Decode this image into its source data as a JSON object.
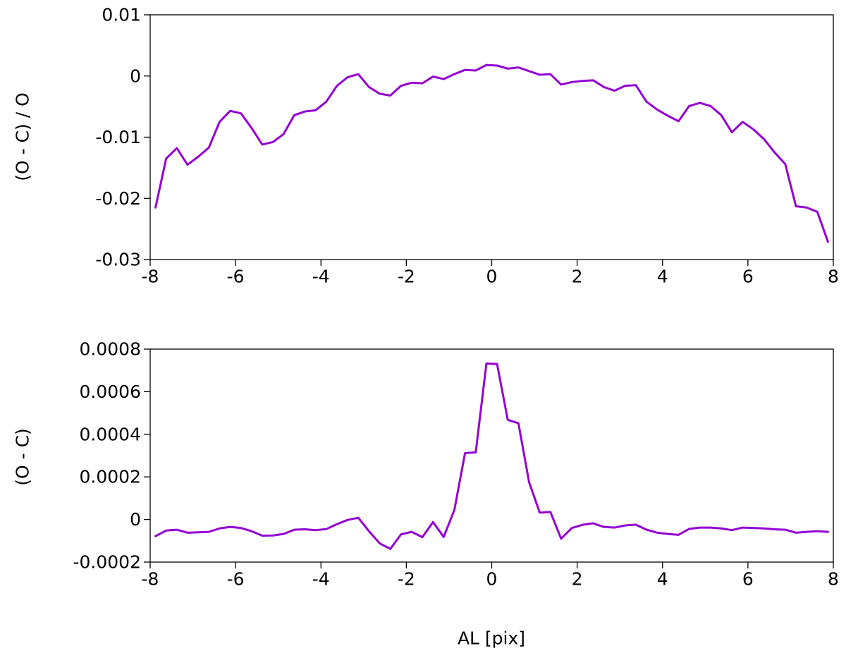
{
  "chart_data": [
    {
      "type": "line",
      "title": "",
      "xlabel": "",
      "ylabel": "(O - C) / O",
      "xlim": [
        -8,
        8
      ],
      "ylim": [
        -0.03,
        0.01
      ],
      "xticks": [
        "-8",
        "-6",
        "-4",
        "-2",
        "0",
        "2",
        "4",
        "6",
        "8"
      ],
      "yticks": [
        "0.01",
        "0",
        "-0.01",
        "-0.02",
        "-0.03"
      ],
      "color": "#9400d3",
      "grid": false,
      "legend": "none",
      "x": [
        -7.875,
        -7.625,
        -7.375,
        -7.125,
        -6.875,
        -6.625,
        -6.375,
        -6.125,
        -5.875,
        -5.625,
        -5.375,
        -5.125,
        -4.875,
        -4.625,
        -4.375,
        -4.125,
        -3.875,
        -3.625,
        -3.375,
        -3.125,
        -2.875,
        -2.625,
        -2.375,
        -2.125,
        -1.875,
        -1.625,
        -1.375,
        -1.125,
        -0.875,
        -0.625,
        -0.375,
        -0.125,
        0.125,
        0.375,
        0.625,
        0.875,
        1.125,
        1.375,
        1.625,
        1.875,
        2.125,
        2.375,
        2.625,
        2.875,
        3.125,
        3.375,
        3.625,
        3.875,
        4.125,
        4.375,
        4.625,
        4.875,
        5.125,
        5.375,
        5.625,
        5.875,
        6.125,
        6.375,
        6.625,
        6.875,
        7.125,
        7.375,
        7.625,
        7.875
      ],
      "y": [
        -0.0215,
        -0.0135,
        -0.0118,
        -0.0145,
        -0.0132,
        -0.0117,
        -0.0075,
        -0.0057,
        -0.0061,
        -0.0085,
        -0.0112,
        -0.0108,
        -0.0095,
        -0.0064,
        -0.0058,
        -0.0056,
        -0.0042,
        -0.0016,
        -0.0002,
        0.0003,
        -0.0018,
        -0.0029,
        -0.0032,
        -0.0016,
        -0.0011,
        -0.0012,
        -0.0001,
        -0.0005,
        0.0003,
        0.001,
        0.0009,
        0.0018,
        0.0017,
        0.0012,
        0.0014,
        0.0008,
        0.0002,
        0.0003,
        -0.0014,
        -0.001,
        -0.0008,
        -0.0007,
        -0.0018,
        -0.0024,
        -0.0016,
        -0.0015,
        -0.0042,
        -0.0055,
        -0.0065,
        -0.0074,
        -0.0049,
        -0.0044,
        -0.0049,
        -0.0064,
        -0.0092,
        -0.0075,
        -0.0087,
        -0.0103,
        -0.0125,
        -0.0144,
        -0.0213,
        -0.0215,
        -0.0222,
        -0.0271
      ]
    },
    {
      "type": "line",
      "title": "",
      "xlabel": "AL [pix]",
      "ylabel": "(O - C)",
      "xlim": [
        -8,
        8
      ],
      "ylim": [
        -0.0002,
        0.0008
      ],
      "xticks": [
        "-8",
        "-6",
        "-4",
        "-2",
        "0",
        "2",
        "4",
        "6",
        "8"
      ],
      "yticks": [
        "0.0008",
        "0.0006",
        "0.0004",
        "0.0002",
        "0",
        "-0.0002"
      ],
      "color": "#9400d3",
      "grid": false,
      "legend": "none",
      "x": [
        -7.875,
        -7.625,
        -7.375,
        -7.125,
        -6.875,
        -6.625,
        -6.375,
        -6.125,
        -5.875,
        -5.625,
        -5.375,
        -5.125,
        -4.875,
        -4.625,
        -4.375,
        -4.125,
        -3.875,
        -3.625,
        -3.375,
        -3.125,
        -2.875,
        -2.625,
        -2.375,
        -2.125,
        -1.875,
        -1.625,
        -1.375,
        -1.125,
        -0.875,
        -0.625,
        -0.375,
        -0.125,
        0.125,
        0.375,
        0.625,
        0.875,
        1.125,
        1.375,
        1.625,
        1.875,
        2.125,
        2.375,
        2.625,
        2.875,
        3.125,
        3.375,
        3.625,
        3.875,
        4.125,
        4.375,
        4.625,
        4.875,
        5.125,
        5.375,
        5.625,
        5.875,
        6.125,
        6.375,
        6.625,
        6.875,
        7.125,
        7.375,
        7.625,
        7.875
      ],
      "y": [
        -7.8e-05,
        -5.2e-05,
        -4.8e-05,
        -6.2e-05,
        -6e-05,
        -5.8e-05,
        -4.2e-05,
        -3.5e-05,
        -4e-05,
        -5.5e-05,
        -7.6e-05,
        -7.5e-05,
        -6.8e-05,
        -4.8e-05,
        -4.6e-05,
        -5e-05,
        -4.5e-05,
        -2.2e-05,
        -2e-06,
        8e-06,
        -5.5e-05,
        -0.000112,
        -0.000138,
        -7e-05,
        -5.8e-05,
        -8.3e-05,
        -1.2e-05,
        -8.2e-05,
        4.5e-05,
        0.000312,
        0.000315,
        0.000732,
        0.00073,
        0.000468,
        0.000452,
        0.000175,
        3.2e-05,
        3.5e-05,
        -9e-05,
        -4e-05,
        -2.5e-05,
        -1.8e-05,
        -3.5e-05,
        -3.8e-05,
        -2.8e-05,
        -2.4e-05,
        -4.8e-05,
        -6.2e-05,
        -6.8e-05,
        -7.2e-05,
        -4.4e-05,
        -3.8e-05,
        -3.8e-05,
        -4.2e-05,
        -5e-05,
        -3.8e-05,
        -4e-05,
        -4.2e-05,
        -4.6e-05,
        -4.8e-05,
        -6.2e-05,
        -5.8e-05,
        -5.5e-05,
        -5.8e-05
      ]
    }
  ]
}
